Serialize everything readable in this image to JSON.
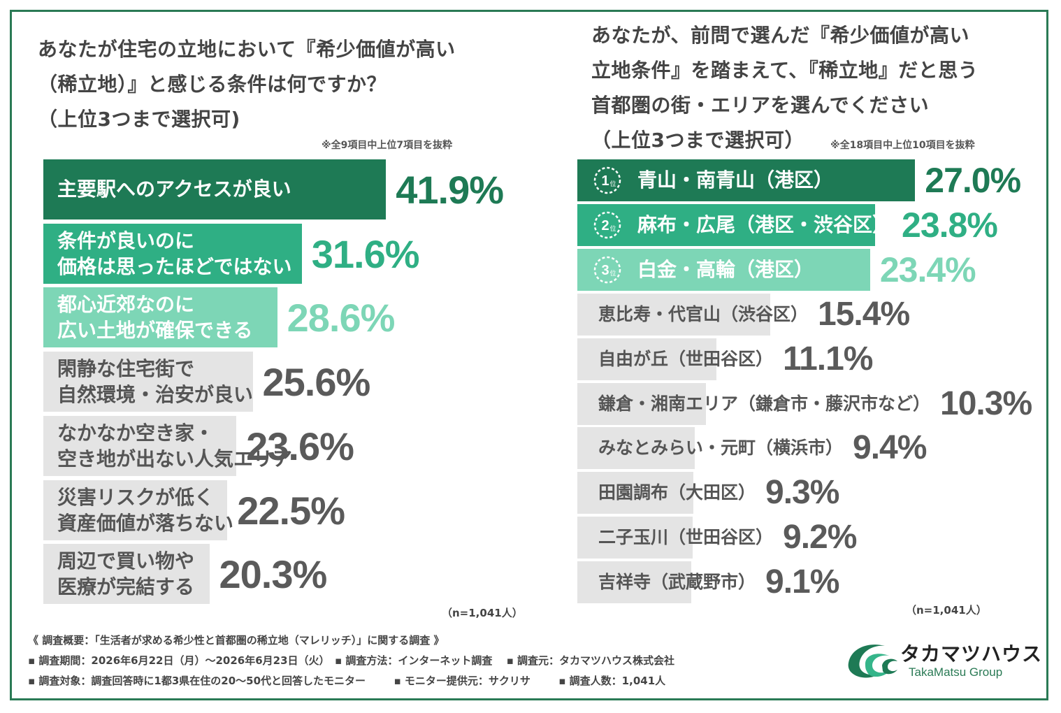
{
  "colors": {
    "frame": "#2a7a55",
    "rank1": "#1e7a55",
    "rank2": "#2faf84",
    "rank3": "#7dd6b6",
    "other": "#e4e4e4",
    "text_dark": "#444444",
    "text_gray": "#555555"
  },
  "left": {
    "title": "あなたが住宅の立地において『希少価値が高い\n（稀立地）』と感じる条件は何ですか？\n（上位3つまで選択可)",
    "note": "※全9項目中上位7項目を抜粋",
    "n": "（n=1,041人）"
  },
  "right": {
    "title": "あなたが、前問で選んだ『希少価値が高い\n立地条件』を踏まえて、『稀立地』だと思う\n首都圏の街・エリアを選んでください\n（上位3つまで選択可）",
    "note": "※全18項目中上位10項目を抜粋",
    "n": "（n=1,041人）"
  },
  "chart_data": [
    {
      "type": "bar",
      "orientation": "horizontal",
      "categories": [
        "主要駅へのアクセスが良い",
        "条件が良いのに\n価格は思ったほどではない",
        "都心近郊なのに\n広い土地が確保できる",
        "閑静な住宅街で\n自然環境・治安が良い",
        "なかなか空き家・\n空き地が出ない人気エリア",
        "災害リスクが低く\n資産価値が落ちない",
        "周辺で買い物や\n医療が完結する"
      ],
      "values": [
        41.9,
        31.6,
        28.6,
        25.6,
        23.6,
        22.5,
        20.3
      ],
      "value_labels": [
        "41.9%",
        "31.6%",
        "28.6%",
        "25.6%",
        "23.6%",
        "22.5%",
        "20.3%"
      ],
      "unit": "%"
    },
    {
      "type": "bar",
      "orientation": "horizontal",
      "categories": [
        "青山・南青山（港区）",
        "麻布・広尾（港区・渋谷区）",
        "白金・高輪（港区）",
        "恵比寿・代官山（渋谷区）",
        "自由が丘（世田谷区）",
        "鎌倉・湘南エリア（鎌倉市・藤沢市など）",
        "みなとみらい・元町（横浜市）",
        "田園調布（大田区）",
        "二子玉川（世田谷区）",
        "吉祥寺（武蔵野市）"
      ],
      "values": [
        27.0,
        23.8,
        23.4,
        15.4,
        11.1,
        10.3,
        9.4,
        9.3,
        9.2,
        9.1
      ],
      "value_labels": [
        "27.0%",
        "23.8%",
        "23.4%",
        "15.4%",
        "11.1%",
        "10.3%",
        "9.4%",
        "9.3%",
        "9.2%",
        "9.1%"
      ],
      "rank_badges": [
        "1",
        "2",
        "3"
      ],
      "rank_suffix": "位",
      "unit": "%"
    }
  ],
  "footer": {
    "line1": "《 調査概要：「生活者が求める希少性と首都圏の稀立地（マレリッチ）」に関する調査 》",
    "line2": "▪ 調査期間：2026年6月22日（月）～2026年6月23日（火）　▪ 調査方法：インターネット調査　 ▪ 調査元：タカマツハウス株式会社",
    "line3": "▪ 調査対象：調査回答時に1都3県在住の20～50代と回答したモニター　　  ▪ モニター提供元：サクリサ　　  ▪ 調査人数：1,041人"
  },
  "logo": {
    "name": "タカマツハウス",
    "sub": "TakaMatsu Group"
  }
}
